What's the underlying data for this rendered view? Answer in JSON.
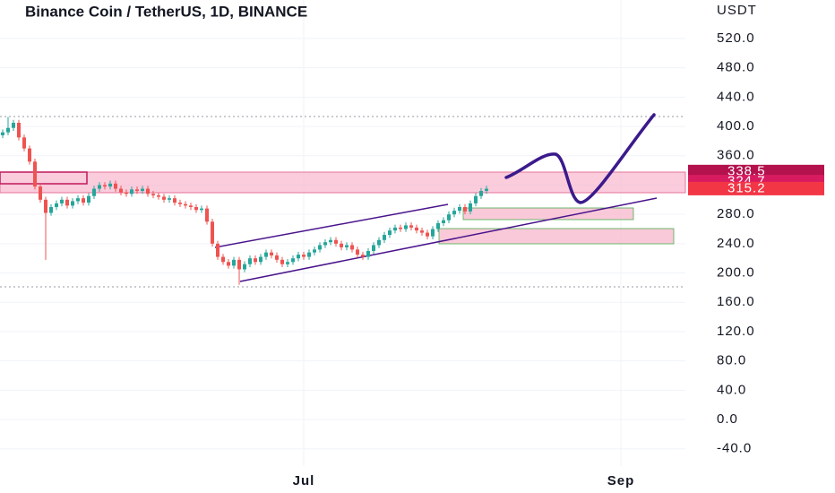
{
  "chart_data": {
    "type": "candlestick",
    "title": "Binance Coin / TetherUS, 1D, BINANCE",
    "unit": "USDT",
    "up_color": "#26a69a",
    "down_color": "#ef5350",
    "grid": true,
    "xlim": [
      -0.5,
      127
    ],
    "ylim": [
      -63.6,
      572.6
    ],
    "xticks": [
      {
        "value": 56,
        "label": "Jul"
      },
      {
        "value": 115,
        "label": "Sep"
      }
    ],
    "yticks": [
      {
        "value": -40,
        "label": "-40.0"
      },
      {
        "value": 0,
        "label": "0.0"
      },
      {
        "value": 40,
        "label": "40.0"
      },
      {
        "value": 80,
        "label": "80.0"
      },
      {
        "value": 120,
        "label": "120.0"
      },
      {
        "value": 160,
        "label": "160.0"
      },
      {
        "value": 200,
        "label": "200.0"
      },
      {
        "value": 240,
        "label": "240.0"
      },
      {
        "value": 280,
        "label": "280.0"
      },
      {
        "value": 320,
        "label": "320.0"
      },
      {
        "value": 360,
        "label": "360.0"
      },
      {
        "value": 400,
        "label": "400.0"
      },
      {
        "value": 440,
        "label": "440.0"
      },
      {
        "value": 480,
        "label": "480.0"
      },
      {
        "value": 520,
        "label": "520.0"
      }
    ],
    "price_labels": [
      {
        "value": 338.5,
        "color": "#b3124d"
      },
      {
        "value": 324.7,
        "color": "#d81b60"
      },
      {
        "value": 315.2,
        "color": "#f23645"
      }
    ],
    "open": [
      388,
      392,
      398,
      405,
      385,
      370,
      352,
      318,
      300,
      282,
      290,
      295,
      300,
      292,
      298,
      302,
      296,
      305,
      315,
      320,
      318,
      322,
      315,
      310,
      308,
      314,
      312,
      315,
      308,
      306,
      304,
      300,
      302,
      296,
      294,
      292,
      290,
      286,
      288,
      270,
      240,
      222,
      215,
      210,
      218,
      205,
      212,
      220,
      215,
      222,
      228,
      224,
      218,
      212,
      215,
      220,
      225,
      222,
      228,
      232,
      238,
      242,
      245,
      240,
      235,
      238,
      232,
      225,
      222,
      230,
      238,
      245,
      252,
      258,
      262,
      260,
      265,
      262,
      258,
      255,
      250,
      260,
      268,
      272,
      280,
      285,
      290,
      284,
      295,
      305,
      312
    ],
    "high": [
      396,
      413,
      409,
      409,
      389,
      374,
      356,
      322,
      304,
      294,
      299,
      304,
      304,
      302,
      306,
      306,
      309,
      319,
      324,
      324,
      326,
      326,
      319,
      314,
      318,
      318,
      319,
      319,
      312,
      310,
      308,
      306,
      306,
      300,
      298,
      296,
      294,
      292,
      292,
      274,
      244,
      226,
      219,
      222,
      222,
      216,
      224,
      224,
      226,
      232,
      232,
      228,
      222,
      219,
      224,
      229,
      229,
      232,
      236,
      242,
      246,
      249,
      249,
      244,
      242,
      242,
      236,
      229,
      234,
      242,
      249,
      256,
      262,
      266,
      266,
      269,
      269,
      266,
      262,
      259,
      264,
      272,
      276,
      284,
      289,
      294,
      294,
      299,
      309,
      316,
      319
    ],
    "low": [
      384,
      388,
      394,
      381,
      366,
      348,
      314,
      296,
      218,
      278,
      286,
      291,
      288,
      288,
      294,
      292,
      292,
      301,
      311,
      314,
      314,
      311,
      306,
      304,
      304,
      308,
      308,
      304,
      302,
      300,
      296,
      296,
      292,
      290,
      288,
      286,
      282,
      282,
      266,
      236,
      218,
      211,
      206,
      206,
      184,
      201,
      208,
      211,
      211,
      218,
      220,
      214,
      208,
      208,
      211,
      216,
      218,
      218,
      224,
      228,
      234,
      238,
      236,
      231,
      231,
      228,
      221,
      218,
      218,
      226,
      234,
      241,
      248,
      254,
      256,
      256,
      258,
      254,
      251,
      246,
      246,
      256,
      264,
      268,
      276,
      281,
      280,
      280,
      291,
      301,
      308
    ],
    "close": [
      392,
      398,
      405,
      385,
      370,
      352,
      318,
      300,
      282,
      290,
      295,
      300,
      292,
      298,
      302,
      296,
      305,
      315,
      320,
      318,
      322,
      315,
      310,
      308,
      314,
      312,
      315,
      308,
      306,
      304,
      300,
      302,
      296,
      294,
      292,
      290,
      286,
      288,
      270,
      240,
      222,
      215,
      210,
      218,
      205,
      212,
      220,
      215,
      222,
      228,
      224,
      218,
      212,
      215,
      220,
      225,
      222,
      228,
      232,
      238,
      242,
      245,
      240,
      235,
      238,
      232,
      225,
      222,
      230,
      238,
      245,
      252,
      258,
      262,
      260,
      265,
      262,
      258,
      255,
      250,
      260,
      268,
      272,
      280,
      285,
      290,
      284,
      295,
      305,
      312,
      315
    ]
  }
}
